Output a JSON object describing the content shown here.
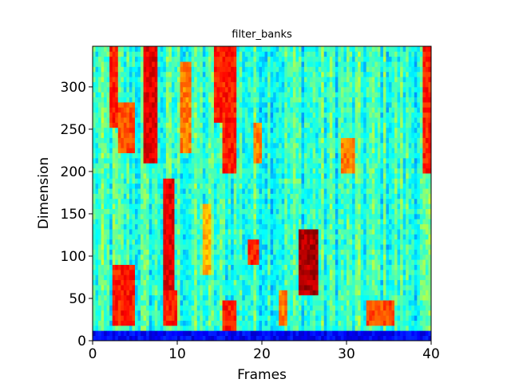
{
  "chart_data": {
    "type": "heatmap",
    "title": "filter_banks",
    "xlabel": "Frames",
    "ylabel": "Dimension",
    "xlim": [
      0,
      40
    ],
    "ylim": [
      0,
      348
    ],
    "xticks": [
      0,
      10,
      20,
      30,
      40
    ],
    "yticks": [
      0,
      50,
      100,
      150,
      200,
      250,
      300
    ],
    "colormap": "jet",
    "grid": false,
    "legend": "none",
    "n_frames": 40,
    "n_dimensions": 348,
    "high_energy_regions": [
      {
        "frames": [
          2.0,
          3.0
        ],
        "dimensions": [
          250,
          348
        ],
        "level": 0.85
      },
      {
        "frames": [
          3.0,
          5.0
        ],
        "dimensions": [
          220,
          280
        ],
        "level": 0.8
      },
      {
        "frames": [
          2.5,
          5.0
        ],
        "dimensions": [
          20,
          90
        ],
        "level": 0.85
      },
      {
        "frames": [
          6.0,
          7.5
        ],
        "dimensions": [
          210,
          348
        ],
        "level": 0.9
      },
      {
        "frames": [
          8.5,
          9.5
        ],
        "dimensions": [
          60,
          190
        ],
        "level": 0.9
      },
      {
        "frames": [
          8.5,
          10.0
        ],
        "dimensions": [
          20,
          60
        ],
        "level": 0.85
      },
      {
        "frames": [
          10.5,
          11.5
        ],
        "dimensions": [
          220,
          330
        ],
        "level": 0.75
      },
      {
        "frames": [
          13.0,
          14.0
        ],
        "dimensions": [
          80,
          160
        ],
        "level": 0.7
      },
      {
        "frames": [
          14.5,
          15.5
        ],
        "dimensions": [
          260,
          348
        ],
        "level": 0.85
      },
      {
        "frames": [
          15.5,
          17.0
        ],
        "dimensions": [
          200,
          348
        ],
        "level": 0.85
      },
      {
        "frames": [
          15.5,
          17.0
        ],
        "dimensions": [
          15,
          45
        ],
        "level": 0.85
      },
      {
        "frames": [
          18.5,
          19.5
        ],
        "dimensions": [
          90,
          120
        ],
        "level": 0.85
      },
      {
        "frames": [
          19.0,
          20.0
        ],
        "dimensions": [
          210,
          260
        ],
        "level": 0.75
      },
      {
        "frames": [
          22.0,
          23.0
        ],
        "dimensions": [
          20,
          60
        ],
        "level": 0.75
      },
      {
        "frames": [
          24.5,
          26.5
        ],
        "dimensions": [
          55,
          130
        ],
        "level": 0.95
      },
      {
        "frames": [
          29.5,
          31.0
        ],
        "dimensions": [
          200,
          240
        ],
        "level": 0.75
      },
      {
        "frames": [
          32.5,
          35.5
        ],
        "dimensions": [
          18,
          45
        ],
        "level": 0.8
      },
      {
        "frames": [
          39.0,
          40.0
        ],
        "dimensions": [
          200,
          348
        ],
        "level": 0.85
      },
      {
        "frames": [
          0.0,
          40.0
        ],
        "dimensions": [
          0,
          12
        ],
        "level": 0.12
      }
    ]
  }
}
